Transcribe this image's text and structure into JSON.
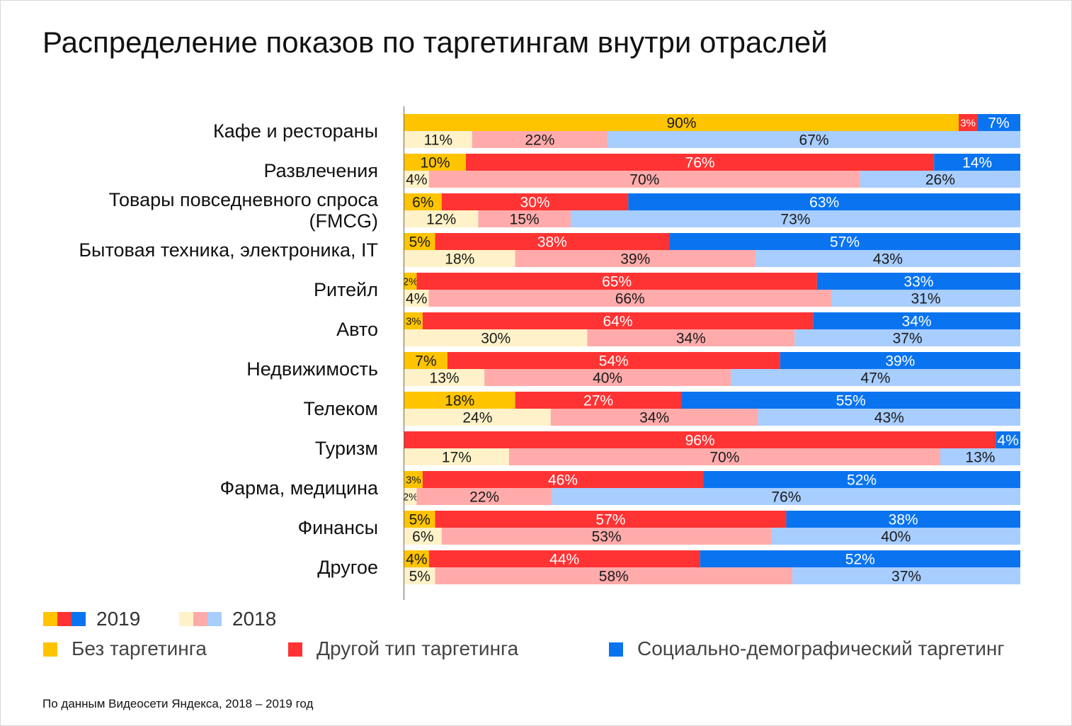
{
  "title": "Распределение показов по таргетингам внутри отраслей",
  "footnote": "По данным Видеосети Яндекса, 2018 – 2019 год",
  "colors": {
    "none_2019": "#FFC400",
    "other_2019": "#FF3333",
    "social_2019": "#0A74F0",
    "none_2018": "#FFF2C8",
    "other_2018": "#FFABAB",
    "social_2018": "#A8CDFF"
  },
  "legend": {
    "year_2019": "2019",
    "year_2018": "2018",
    "none": "Без таргетинга",
    "other": "Другой тип таргетинга",
    "social": "Социально-демографический таргетинг"
  },
  "chart_data": {
    "type": "bar",
    "orientation": "horizontal",
    "stacked": true,
    "normalized_percent": true,
    "title": "Распределение показов по таргетингам внутри отраслей",
    "xlim": [
      0,
      100
    ],
    "series_order": [
      "Без таргетинга",
      "Другой тип таргетинга",
      "Социально-демографический таргетинг"
    ],
    "categories": [
      "Кафе и рестораны",
      "Развлечения",
      "Товары повседневного спроса (FMCG)",
      "Бытовая техника, электроника, IT",
      "Ритейл",
      "Авто",
      "Недвижимость",
      "Телеком",
      "Туризм",
      "Фарма, медицина",
      "Финансы",
      "Другое"
    ],
    "category_lines": [
      [
        "Кафе и рестораны"
      ],
      [
        "Развлечения"
      ],
      [
        "Товары повседневного спроса",
        "(FMCG)"
      ],
      [
        "Бытовая техника, электроника, IT"
      ],
      [
        "Ритейл"
      ],
      [
        "Авто"
      ],
      [
        "Недвижимость"
      ],
      [
        "Телеком"
      ],
      [
        "Туризм"
      ],
      [
        "Фарма, медицина"
      ],
      [
        "Финансы"
      ],
      [
        "Другое"
      ]
    ],
    "series_2019": [
      [
        90,
        3,
        7
      ],
      [
        10,
        76,
        14
      ],
      [
        6,
        30,
        63
      ],
      [
        5,
        38,
        57
      ],
      [
        2,
        65,
        33
      ],
      [
        3,
        64,
        34
      ],
      [
        7,
        54,
        39
      ],
      [
        18,
        27,
        55
      ],
      [
        0,
        96,
        4
      ],
      [
        3,
        46,
        52
      ],
      [
        5,
        57,
        38
      ],
      [
        4,
        44,
        52
      ]
    ],
    "series_2018": [
      [
        11,
        22,
        67
      ],
      [
        4,
        70,
        26
      ],
      [
        12,
        15,
        73
      ],
      [
        18,
        39,
        43
      ],
      [
        4,
        66,
        31
      ],
      [
        30,
        34,
        37
      ],
      [
        13,
        40,
        47
      ],
      [
        24,
        34,
        43
      ],
      [
        17,
        70,
        13
      ],
      [
        2,
        22,
        76
      ],
      [
        6,
        53,
        40
      ],
      [
        5,
        58,
        37
      ]
    ]
  }
}
